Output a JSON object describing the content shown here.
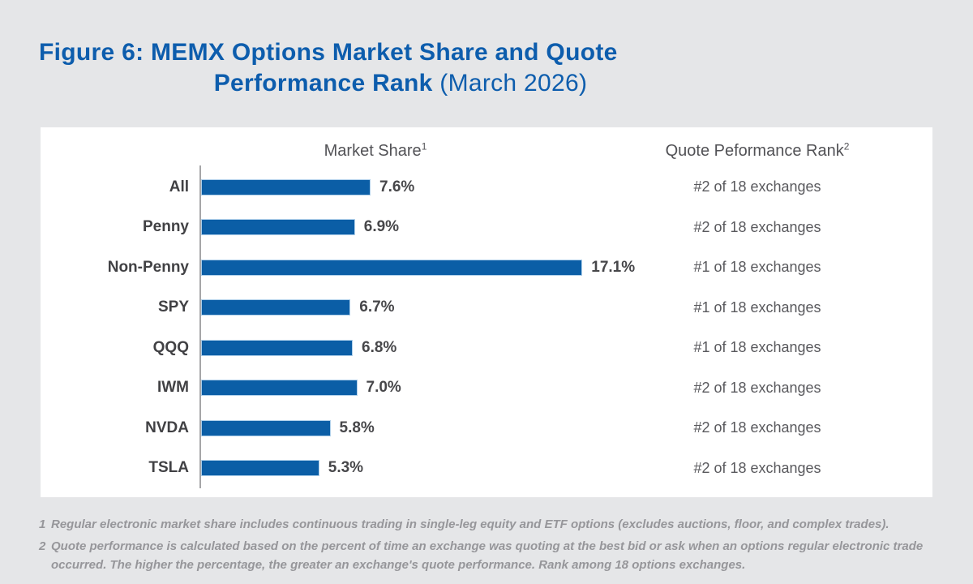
{
  "title": {
    "line1": "Figure 6: MEMX Options Market Share and Quote",
    "line2_bold": "Performance Rank",
    "line2_suffix": " (March 2026)"
  },
  "panel": {
    "col1_header": {
      "text": "Market Share",
      "sup": "1"
    },
    "col2_header": {
      "text": "Quote Peformance Rank",
      "sup": "2"
    }
  },
  "chart_data": {
    "type": "bar",
    "orientation": "horizontal",
    "title": "Market Share",
    "categories": [
      "All",
      "Penny",
      "Non-Penny",
      "SPY",
      "QQQ",
      "IWM",
      "NVDA",
      "TSLA"
    ],
    "values": [
      7.6,
      6.9,
      17.1,
      6.7,
      6.8,
      7.0,
      5.8,
      5.3
    ],
    "value_labels": [
      "7.6%",
      "6.9%",
      "17.1%",
      "6.7%",
      "6.8%",
      "7.0%",
      "5.8%",
      "5.3%"
    ],
    "ranks": [
      "#2 of 18 exchanges",
      "#2 of 18 exchanges",
      "#1 of 18 exchanges",
      "#1 of 18 exchanges",
      "#1 of 18 exchanges",
      "#2 of 18 exchanges",
      "#2 of 18 exchanges",
      "#2 of 18 exchanges"
    ],
    "xlim": [
      0,
      18
    ],
    "grid": false,
    "legend": false,
    "bar_color": "#0b5ea6"
  },
  "footnotes": [
    {
      "num": "1",
      "text": "Regular electronic market share includes continuous trading in single-leg equity and ETF options (excludes auctions, floor, and complex trades)."
    },
    {
      "num": "2",
      "text": "Quote performance is calculated based on the percent of time an exchange was quoting at the best bid or ask when an options regular electronic trade occurred. The higher the percentage, the greater an exchange's quote performance. Rank among 18 options exchanges."
    }
  ],
  "colors": {
    "page_background": "#e5e6e8",
    "panel_background": "#ffffff",
    "title_blue": "#0d5dad",
    "bar_blue": "#0b5ea6",
    "axis_gray": "#a6a6a8",
    "footnote_gray": "#96969a"
  }
}
